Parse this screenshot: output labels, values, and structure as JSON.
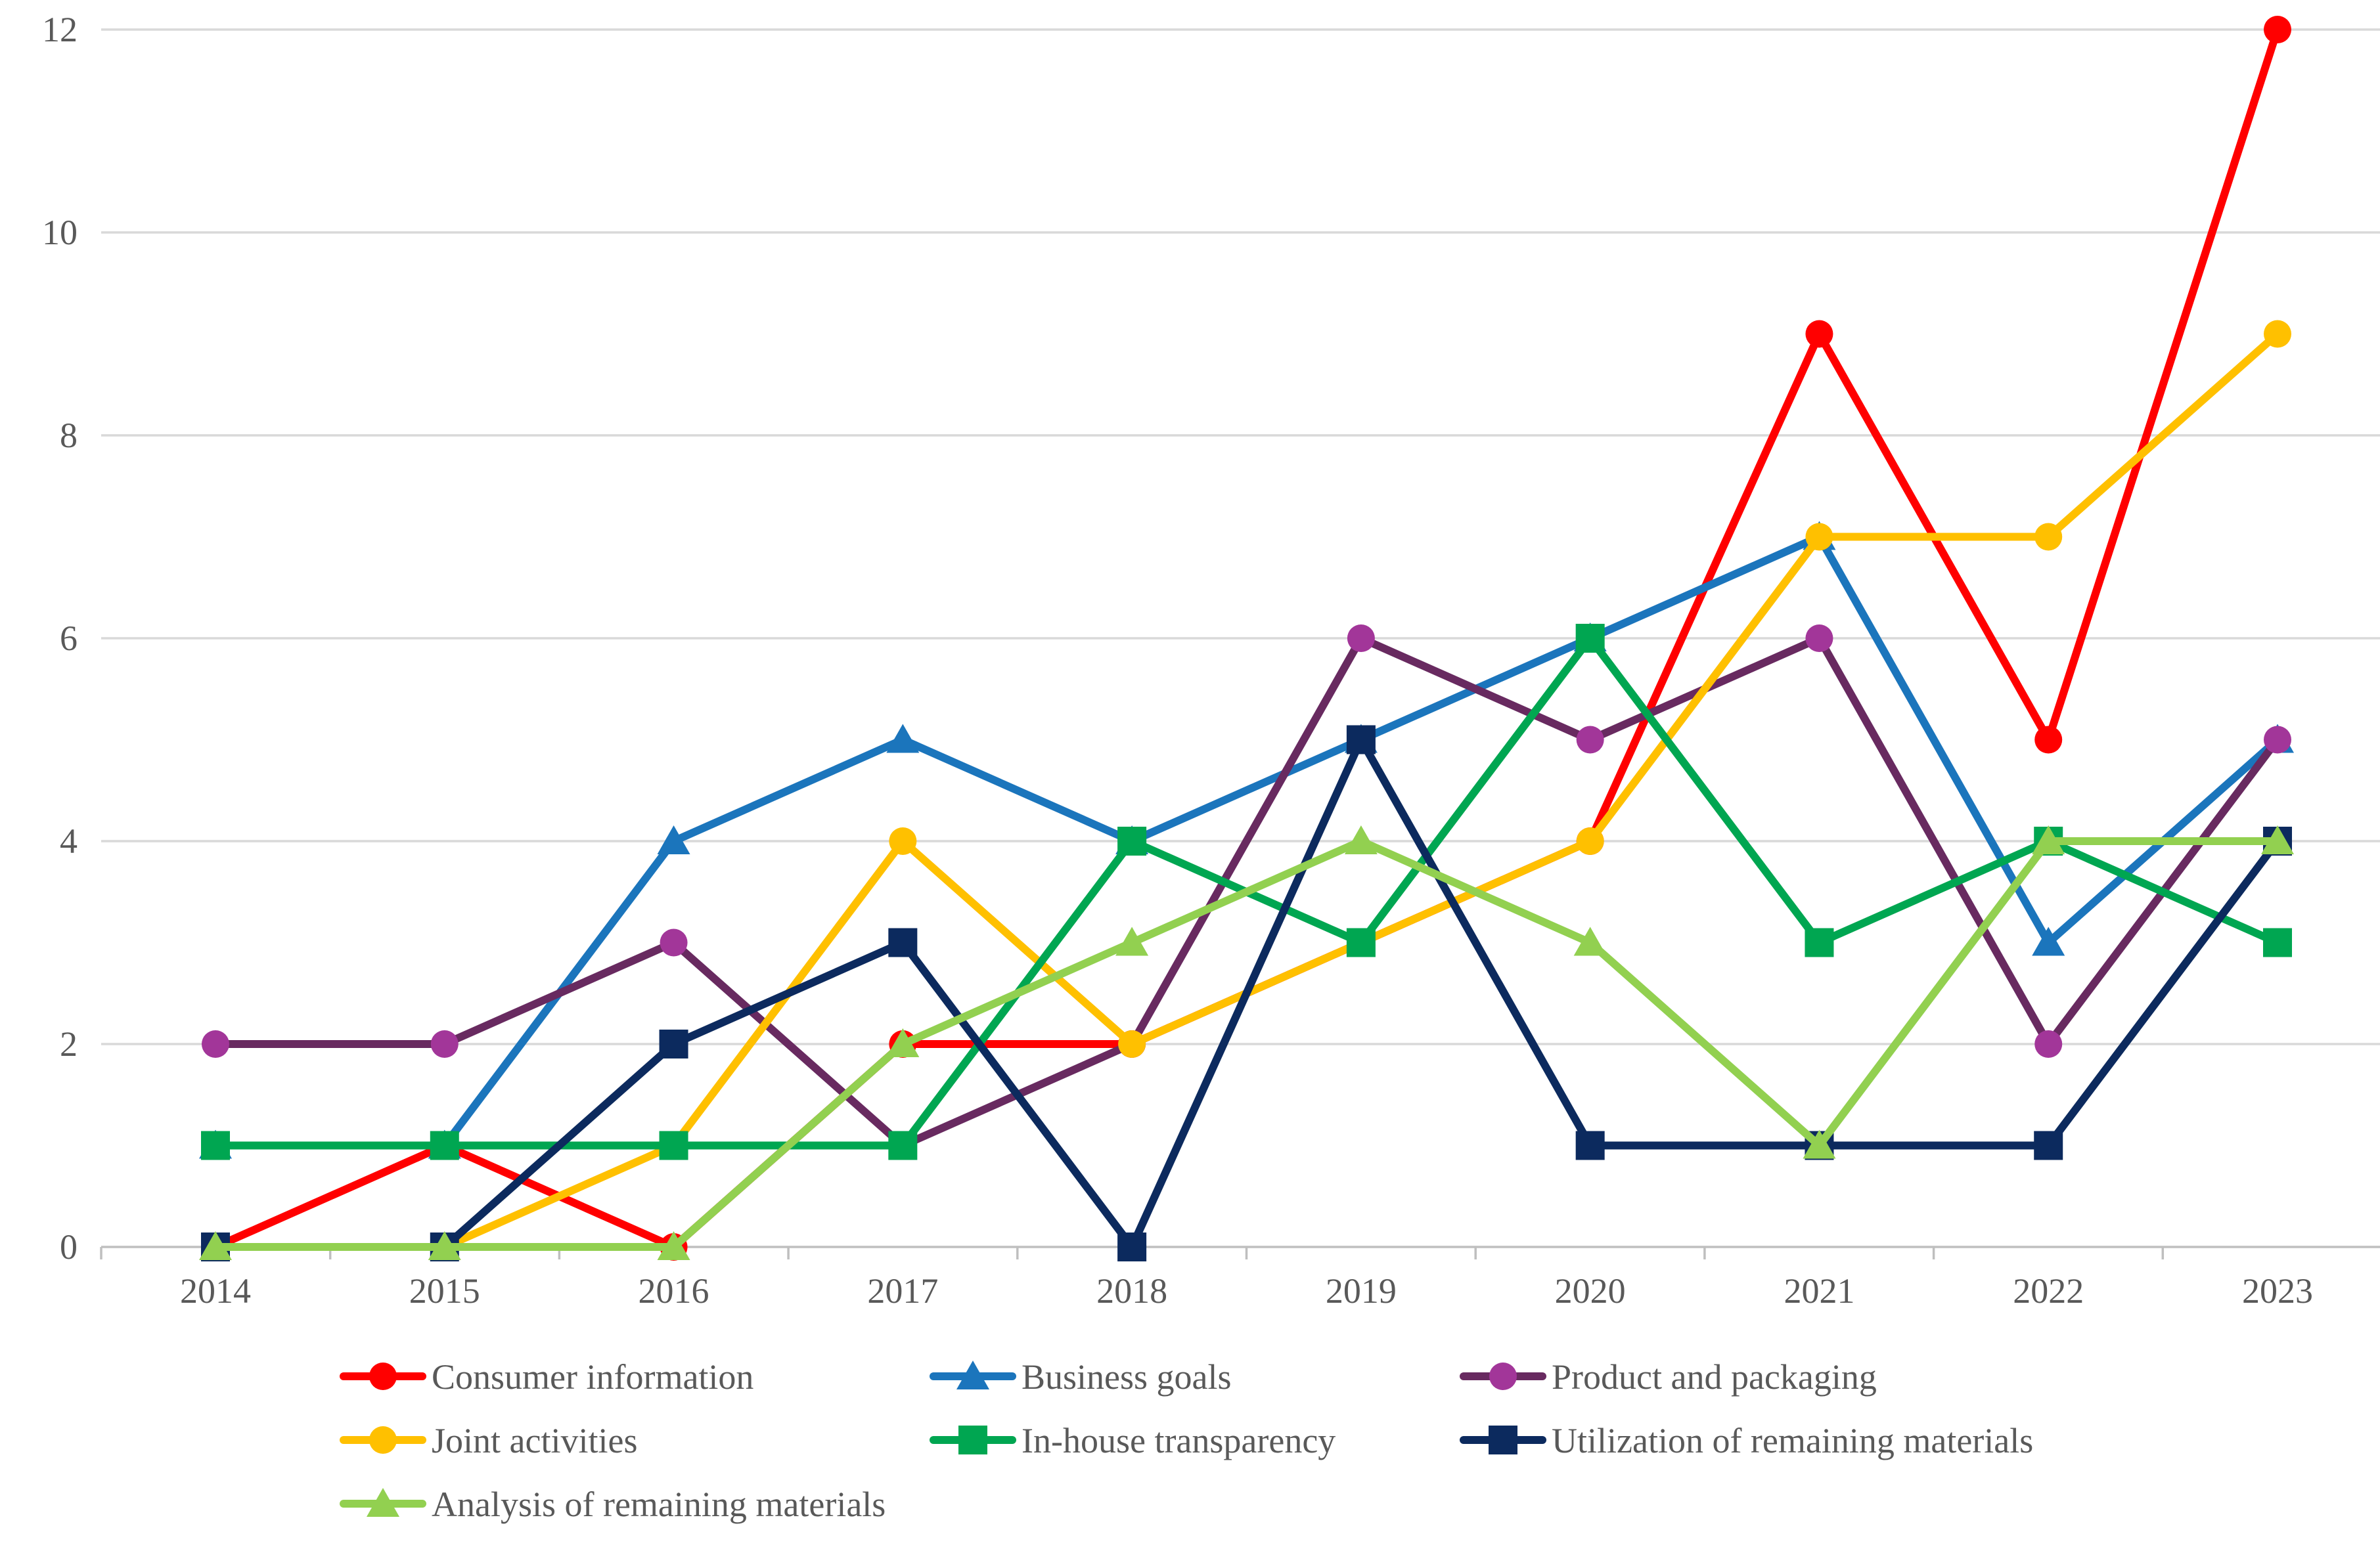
{
  "chart_data": {
    "type": "line",
    "title": "",
    "xlabel": "",
    "ylabel": "",
    "categories": [
      "2014",
      "2015",
      "2016",
      "2017",
      "2018",
      "2019",
      "2020",
      "2021",
      "2022",
      "2023"
    ],
    "series": [
      {
        "name": "Consumer information",
        "line_color": "#ff0000",
        "marker_color": "#ff0000",
        "marker": "circle",
        "values": [
          0,
          1,
          0,
          2,
          2,
          3,
          4,
          9,
          5,
          12
        ]
      },
      {
        "name": "Business goals",
        "line_color": "#1b75bc",
        "marker_color": "#1b75bc",
        "marker": "triangle",
        "values": [
          1,
          1,
          4,
          5,
          4,
          5,
          6,
          7,
          3,
          5
        ]
      },
      {
        "name": "Product and packaging",
        "line_color": "#682a60",
        "marker_color": "#a23699",
        "marker": "circle",
        "values": [
          2,
          2,
          3,
          1,
          2,
          6,
          5,
          6,
          2,
          5
        ]
      },
      {
        "name": "Joint activities",
        "line_color": "#ffc000",
        "marker_color": "#ffc000",
        "marker": "circle",
        "values": [
          0,
          0,
          1,
          4,
          2,
          3,
          4,
          7,
          7,
          9
        ]
      },
      {
        "name": "In-house transparency",
        "line_color": "#00a651",
        "marker_color": "#00a651",
        "marker": "square",
        "values": [
          1,
          1,
          1,
          1,
          4,
          3,
          6,
          3,
          4,
          3
        ]
      },
      {
        "name": "Utilization of remaining materials",
        "line_color": "#0c2a5e",
        "marker_color": "#0c2a5e",
        "marker": "square",
        "values": [
          0,
          0,
          2,
          3,
          0,
          5,
          1,
          1,
          1,
          4
        ]
      },
      {
        "name": "Analysis of remaining materials",
        "line_color": "#92d050",
        "marker_color": "#92d050",
        "marker": "triangle",
        "values": [
          0,
          0,
          0,
          2,
          3,
          4,
          3,
          1,
          4,
          4
        ]
      }
    ],
    "ylim": [
      0,
      12
    ],
    "yticks": [
      0,
      2,
      4,
      6,
      8,
      10,
      12
    ],
    "grid": true,
    "legend_position": "bottom-left",
    "legend_columns": 3
  },
  "style": {
    "background": "#ffffff",
    "grid_color": "#d9d9d9",
    "axis_color": "#bfbfbf",
    "label_color": "#595959"
  }
}
